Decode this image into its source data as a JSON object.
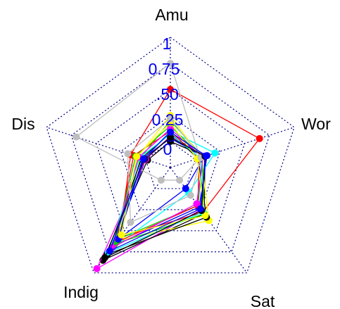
{
  "chart_data": {
    "type": "radar",
    "axes": [
      "Amu",
      "Wor",
      "Sat",
      "Indig",
      "Dis"
    ],
    "ticks": [
      "0",
      "0.25",
      ".50",
      "0.75",
      "1"
    ],
    "range": [
      -0.25,
      1
    ],
    "grid": "dotted",
    "legend": "none",
    "colors": {
      "grid": "#00008b",
      "tick_label": "#0000ee",
      "axis_label": "#000000"
    },
    "series": [
      {
        "color": "#000000",
        "values": [
          0.0,
          0.1,
          0.3,
          0.85,
          -0.02
        ]
      },
      {
        "color": "#ff0000",
        "values": [
          0.5,
          0.65,
          0.28,
          0.58,
          0.15
        ]
      },
      {
        "color": "#00cd00",
        "values": [
          0.2,
          0.08,
          0.2,
          0.6,
          0.05
        ]
      },
      {
        "color": "#0000ff",
        "values": [
          0.05,
          0.12,
          0.22,
          0.68,
          0.0
        ]
      },
      {
        "color": "#00ffff",
        "values": [
          0.1,
          0.2,
          0.05,
          0.72,
          0.02
        ]
      },
      {
        "color": "#ff00ff",
        "values": [
          0.05,
          0.1,
          0.25,
          0.95,
          0.0
        ]
      },
      {
        "color": "#ffff00",
        "values": [
          0.25,
          0.06,
          0.38,
          0.62,
          0.08
        ]
      },
      {
        "color": "#bebebe",
        "values": [
          0.75,
          0.05,
          -0.1,
          -0.1,
          0.7
        ]
      },
      {
        "color": "#000000",
        "values": [
          0.08,
          0.03,
          0.34,
          0.78,
          0.04
        ]
      },
      {
        "color": "#ff0000",
        "values": [
          0.1,
          0.04,
          0.2,
          0.64,
          0.12
        ]
      },
      {
        "color": "#00cd00",
        "values": [
          0.15,
          0.07,
          0.3,
          0.66,
          0.1
        ]
      },
      {
        "color": "#0000ff",
        "values": [
          0.03,
          0.09,
          0.0,
          0.6,
          0.03
        ]
      },
      {
        "color": "#00ffff",
        "values": [
          0.07,
          0.05,
          0.28,
          0.76,
          0.06
        ]
      },
      {
        "color": "#ff00ff",
        "values": [
          0.12,
          0.08,
          0.18,
          0.7,
          0.07
        ]
      },
      {
        "color": "#ffff00",
        "values": [
          0.18,
          0.02,
          0.32,
          0.55,
          0.09
        ]
      },
      {
        "color": "#bebebe",
        "values": [
          0.22,
          0.06,
          0.08,
          0.4,
          0.18
        ]
      },
      {
        "color": "#000000",
        "values": [
          0.04,
          0.1,
          0.26,
          0.82,
          0.01
        ]
      },
      {
        "color": "#0000ff",
        "values": [
          0.09,
          0.11,
          0.24,
          0.74,
          0.02
        ]
      }
    ]
  }
}
